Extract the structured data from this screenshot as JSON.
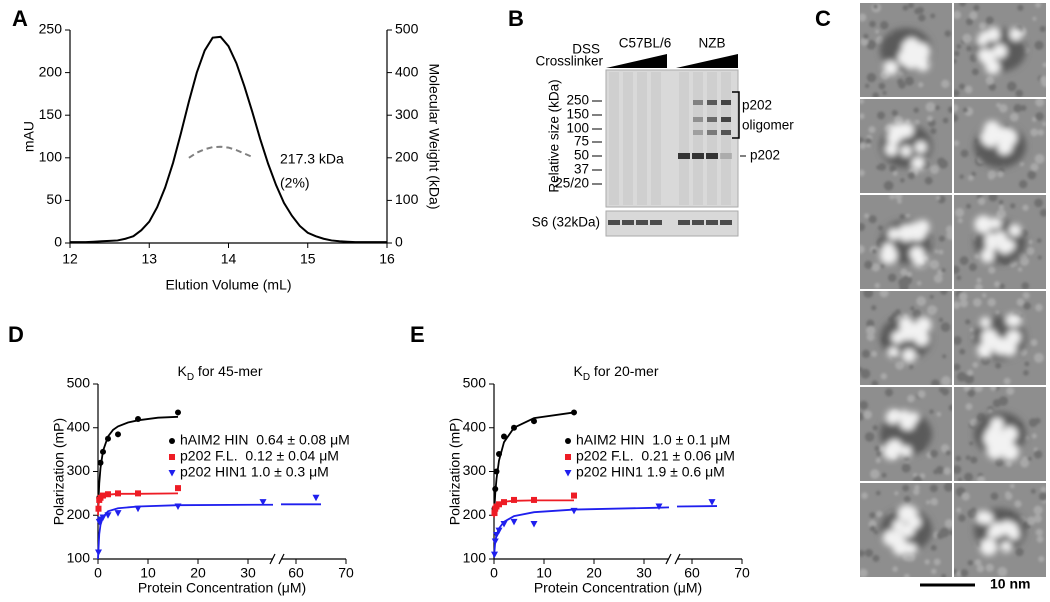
{
  "panel_labels": [
    "A",
    "B",
    "C",
    "D",
    "E"
  ],
  "blot": {
    "treatment_labels": [
      "DSS",
      "Crosslinker"
    ],
    "strains": [
      "C57BL/6",
      "NZB"
    ],
    "size_label": "Relative size (kDa)",
    "size_markers": [
      "250",
      "150",
      "100",
      "75",
      "50",
      "37",
      "25/20"
    ],
    "oligomer_label": [
      "p202",
      "oligomer"
    ],
    "monomer_label": "p202",
    "loading_label": "S6 (32kDa)"
  },
  "micrographs": {
    "scale_bar": "10 nm"
  },
  "chart_data": [
    {
      "type": "line",
      "xlabel": "Elution Volume (mL)",
      "ylabel": "mAU",
      "y2label": "Molecular Weight (kDa)",
      "xlim": [
        12,
        16
      ],
      "xticks": [
        12,
        13,
        14,
        15,
        16
      ],
      "ylim": [
        0,
        250
      ],
      "yticks": [
        0,
        50,
        100,
        150,
        200,
        250
      ],
      "y2lim": [
        0,
        500
      ],
      "y2ticks": [
        0,
        100,
        200,
        300,
        400,
        500
      ],
      "series": [
        {
          "color": "#000000",
          "x": [
            12.0,
            12.1,
            12.2,
            12.3,
            12.4,
            12.5,
            12.6,
            12.7,
            12.8,
            12.9,
            13.0,
            13.1,
            13.2,
            13.3,
            13.4,
            13.5,
            13.6,
            13.7,
            13.8,
            13.9,
            14.0,
            14.1,
            14.2,
            14.3,
            14.4,
            14.5,
            14.6,
            14.7,
            14.8,
            14.9,
            15.0,
            15.1,
            15.2,
            15.3,
            15.4,
            15.5,
            15.6,
            15.7,
            15.8,
            15.9,
            16.0
          ],
          "values": [
            1,
            1,
            1,
            1.5,
            2,
            2.5,
            3,
            5,
            8,
            15,
            25,
            42,
            65,
            94,
            129,
            166,
            200,
            226,
            241,
            242,
            231,
            211,
            184,
            154,
            122,
            93,
            68,
            47,
            32,
            20,
            12,
            8,
            5,
            3,
            2,
            1.5,
            1,
            1,
            1,
            1,
            1
          ]
        },
        {
          "color": "#808080",
          "dash": true,
          "axis": "y2",
          "x": [
            13.5,
            13.6,
            13.7,
            13.8,
            13.9,
            14.0,
            14.1,
            14.2,
            14.3
          ],
          "values": [
            200,
            212,
            220,
            225,
            226,
            224,
            218,
            210,
            202
          ]
        }
      ],
      "annotations": [
        "217.3 kDa",
        "(2%)"
      ]
    },
    {
      "type": "scatter",
      "title": [
        "K",
        "D",
        " for 45-mer"
      ],
      "xlabel": "Protein Concentration (μM)",
      "ylabel": "Polarization (mP)",
      "xlim": [
        0,
        70
      ],
      "xbreak": [
        35,
        57
      ],
      "xticks": [
        0,
        10,
        20,
        30,
        60,
        70
      ],
      "ylim": [
        100,
        500
      ],
      "yticks": [
        100,
        200,
        300,
        400,
        500
      ],
      "series": [
        {
          "name": "hAIM2 HIN  0.64 ± 0.08 μM",
          "color": "#000000",
          "marker": "circle",
          "x": [
            0.25,
            0.5,
            1,
            2,
            4,
            8,
            16
          ],
          "values": [
            240,
            320,
            345,
            375,
            385,
            420,
            435
          ],
          "fit": {
            "x": [
              0,
              0.25,
              0.5,
              1,
              2,
              3,
              4,
              6,
              8,
              12,
              16
            ],
            "values": [
              210,
              273,
              308,
              347,
              380,
              395,
              403,
              412,
              417,
              423,
              425
            ]
          }
        },
        {
          "name": "p202 F.L.  0.12 ± 0.04 μM",
          "color": "#ee1c25",
          "marker": "square",
          "x": [
            0.1,
            0.25,
            0.5,
            1,
            2,
            4,
            8,
            16
          ],
          "values": [
            215,
            235,
            240,
            245,
            248,
            250,
            250,
            262
          ],
          "fit": {
            "x": [
              0,
              0.1,
              0.25,
              0.5,
              1,
              2,
              4,
              8,
              16
            ],
            "values": [
              200,
              223,
              234,
              240,
              245,
              247,
              249,
              249,
              250
            ]
          }
        },
        {
          "name": "p202 HIN1 1.0 ± 0.3 μM",
          "color": "#1f1fee",
          "marker": "triangle-down",
          "x": [
            0.1,
            0.25,
            0.5,
            1,
            2,
            4,
            8,
            16,
            33,
            64
          ],
          "values": [
            115,
            185,
            190,
            195,
            200,
            205,
            215,
            220,
            230,
            240
          ],
          "fit": {
            "x": [
              0,
              0.25,
              0.5,
              1,
              2,
              4,
              8,
              16,
              32,
              35,
              null,
              57,
              65
            ],
            "values": [
              100,
              157,
              178,
              196,
              209,
              216,
              220,
              223,
              224,
              224,
              null,
              225,
              225
            ]
          }
        }
      ]
    },
    {
      "type": "scatter",
      "title": [
        "K",
        "D",
        " for 20-mer"
      ],
      "xlabel": "Protein Concentration (μM)",
      "ylabel": "Polarization (mP)",
      "xlim": [
        0,
        70
      ],
      "xbreak": [
        35,
        57
      ],
      "xticks": [
        0,
        10,
        20,
        30,
        60,
        70
      ],
      "ylim": [
        100,
        500
      ],
      "yticks": [
        100,
        200,
        300,
        400,
        500
      ],
      "series": [
        {
          "name": "hAIM2 HIN  1.0 ± 0.1 μM",
          "color": "#000000",
          "marker": "circle",
          "x": [
            0.1,
            0.25,
            0.5,
            1,
            2,
            4,
            8,
            16
          ],
          "values": [
            215,
            260,
            300,
            340,
            380,
            400,
            415,
            435
          ],
          "fit": {
            "x": [
              0,
              0.25,
              0.5,
              1,
              2,
              4,
              8,
              16
            ],
            "values": [
              200,
              250,
              283,
              325,
              367,
              400,
              422,
              435
            ]
          }
        },
        {
          "name": "p202 F.L.  0.21 ± 0.06 μM",
          "color": "#ee1c25",
          "marker": "square",
          "x": [
            0.1,
            0.25,
            0.5,
            1,
            2,
            4,
            8,
            16
          ],
          "values": [
            205,
            215,
            220,
            225,
            230,
            235,
            235,
            245
          ],
          "fit": {
            "x": [
              0,
              0.1,
              0.25,
              0.5,
              1,
              2,
              4,
              8,
              16
            ],
            "values": [
              195,
              208,
              217,
              223,
              228,
              231,
              233,
              234,
              234
            ]
          }
        },
        {
          "name": "p202 HIN1 1.9 ± 0.6 μM",
          "color": "#1f1fee",
          "marker": "triangle-down",
          "x": [
            0.1,
            0.25,
            0.5,
            1,
            2,
            4,
            8,
            16,
            33,
            64
          ],
          "values": [
            110,
            140,
            155,
            165,
            180,
            185,
            180,
            210,
            220,
            230
          ],
          "fit": {
            "x": [
              0,
              0.25,
              0.5,
              1,
              2,
              4,
              8,
              16,
              32,
              35,
              null,
              57,
              65
            ],
            "values": [
              105,
              140,
              155,
              170,
              185,
              198,
              207,
              213,
              217,
              218,
              null,
              220,
              221
            ]
          }
        }
      ]
    }
  ]
}
